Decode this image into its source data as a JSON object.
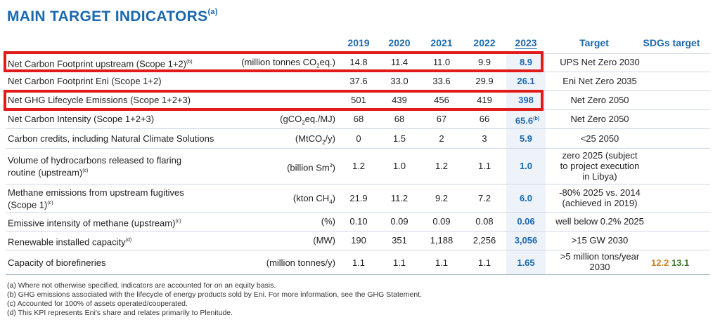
{
  "title": "MAIN TARGET INDICATORS",
  "title_note": "(a)",
  "headers": {
    "y2019": "2019",
    "y2020": "2020",
    "y2021": "2021",
    "y2022": "2022",
    "y2023": "2023",
    "target": "Target",
    "sdgs": "SDGs target"
  },
  "rows": [
    {
      "label": "Net Carbon Footprint upstream (Scope 1+2)",
      "label_note": "(b)",
      "unit_pre": "(million tonnes CO",
      "unit_sub": "2",
      "unit_post": "eq.)",
      "v2019": "14.8",
      "v2020": "11.4",
      "v2021": "11.0",
      "v2022": "9.9",
      "v2023": "8.9",
      "target": "UPS Net Zero 2030"
    },
    {
      "label": "Net Carbon Footprint Eni (Scope 1+2)",
      "v2019": "37.6",
      "v2020": "33.0",
      "v2021": "33.6",
      "v2022": "29.9",
      "v2023": "26.1",
      "target": "Eni Net Zero 2035"
    },
    {
      "label": "Net GHG Lifecycle Emissions (Scope 1+2+3)",
      "v2019": "501",
      "v2020": "439",
      "v2021": "456",
      "v2022": "419",
      "v2023": "398",
      "target": "Net Zero 2050"
    },
    {
      "label": "Net Carbon Intensity (Scope 1+2+3)",
      "unit_pre": "(gCO",
      "unit_sub": "2",
      "unit_post": "eq./MJ)",
      "v2019": "68",
      "v2020": "68",
      "v2021": "67",
      "v2022": "66",
      "v2023": "65.6",
      "v2023_note": "(b)",
      "target": "Net Zero 2050"
    },
    {
      "label": "Carbon credits, including Natural Climate Solutions",
      "unit_pre": "(MtCO",
      "unit_sub": "2",
      "unit_post": "/y)",
      "v2019": "0",
      "v2020": "1.5",
      "v2021": "2",
      "v2022": "3",
      "v2023": "5.9",
      "target": "<25 2050"
    },
    {
      "label_line1": "Volume of hydrocarbons released to flaring",
      "label_line2": "routine (upstream)",
      "label_note": "(c)",
      "unit_pre": "(billion Sm",
      "unit_sup": "3",
      "unit_post": ")",
      "v2019": "1.2",
      "v2020": "1.0",
      "v2021": "1.2",
      "v2022": "1.1",
      "v2023": "1.0",
      "target_line1": "zero 2025 (subject",
      "target_line2": "to project execution",
      "target_line3": "in Libya)"
    },
    {
      "label_line1": "Methane emissions from upstream fugitives",
      "label_line2": "(Scope 1)",
      "label_note": "(c)",
      "unit_pre": "(kton CH",
      "unit_sub": "4",
      "unit_post": ")",
      "v2019": "21.9",
      "v2020": "11.2",
      "v2021": "9.2",
      "v2022": "7.2",
      "v2023": "6.0",
      "target_line1": "-80% 2025 vs. 2014",
      "target_line2": "(achieved in 2019)"
    },
    {
      "label": "Emissive intensity of methane (upstream)",
      "label_note": "(c)",
      "unit": "(%)",
      "v2019": "0.10",
      "v2020": "0.09",
      "v2021": "0.09",
      "v2022": "0.08",
      "v2023": "0.06",
      "target": "well below 0.2% 2025"
    },
    {
      "label": "Renewable installed capacity",
      "label_note": "(d)",
      "unit": "(MW)",
      "v2019": "190",
      "v2020": "351",
      "v2021": "1,188",
      "v2022": "2,256",
      "v2023": "3,056",
      "target": ">15 GW 2030"
    },
    {
      "label": "Capacity of biorefineries",
      "unit": "(million tonnes/y)",
      "v2019": "1.1",
      "v2020": "1.1",
      "v2021": "1.1",
      "v2022": "1.1",
      "v2023": "1.65",
      "target_line1": ">5 million tons/year",
      "target_line2": "2030",
      "sdg1": "12.2",
      "sdg2": "13.1"
    }
  ],
  "footnotes": [
    "(a) Where not otherwise specified,  indicators are accounted for on an equity basis.",
    "(b) GHG emissions associated with the lifecycle of energy products sold by Eni. For more information, see the GHG Statement.",
    "(c) Accounted for 100% of assets operated/cooperated.",
    "(d) This KPI represents Eni's share and relates primarily to Plenitude."
  ],
  "highlight_color": "#e21a1a"
}
